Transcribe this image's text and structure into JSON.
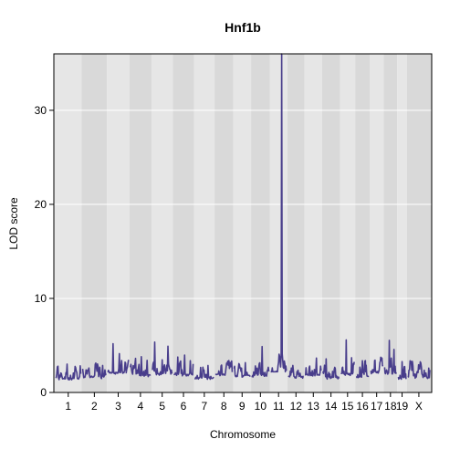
{
  "chart_data": {
    "type": "line",
    "title": "Hnf1b",
    "xlabel": "Chromosome",
    "ylabel": "LOD score",
    "ylim": [
      0,
      36
    ],
    "yticks": [
      0,
      10,
      20,
      30
    ],
    "grid": true,
    "colors": {
      "line": "#483D8B",
      "band_light": "#E6E6E6",
      "band_dark": "#D9D9D9",
      "grid": "#FFFFFF",
      "frame": "#000000"
    },
    "chromosomes": [
      {
        "label": "1",
        "len": 195,
        "baseline": 1.4,
        "peaks": [
          [
            0.08,
            3.4
          ],
          [
            0.45,
            3.0
          ],
          [
            0.78,
            3.1
          ]
        ]
      },
      {
        "label": "2",
        "len": 182,
        "baseline": 1.5,
        "peaks": [
          [
            0.15,
            2.4
          ],
          [
            0.55,
            4.0
          ],
          [
            0.85,
            2.8
          ]
        ]
      },
      {
        "label": "3",
        "len": 160,
        "baseline": 2.0,
        "peaks": [
          [
            0.25,
            5.2
          ],
          [
            0.55,
            4.5
          ],
          [
            0.85,
            3.5
          ]
        ]
      },
      {
        "label": "4",
        "len": 157,
        "baseline": 1.8,
        "peaks": [
          [
            0.15,
            3.0
          ],
          [
            0.55,
            4.2
          ],
          [
            0.82,
            3.8
          ]
        ]
      },
      {
        "label": "5",
        "len": 152,
        "baseline": 1.9,
        "peaks": [
          [
            0.12,
            5.5
          ],
          [
            0.5,
            3.6
          ],
          [
            0.8,
            5.2
          ]
        ]
      },
      {
        "label": "6",
        "len": 150,
        "baseline": 1.8,
        "peaks": [
          [
            0.2,
            4.1
          ],
          [
            0.55,
            4.6
          ],
          [
            0.85,
            3.3
          ]
        ]
      },
      {
        "label": "7",
        "len": 145,
        "baseline": 1.5,
        "peaks": [
          [
            0.3,
            2.7
          ],
          [
            0.7,
            3.0
          ]
        ]
      },
      {
        "label": "8",
        "len": 130,
        "baseline": 1.8,
        "peaks": [
          [
            0.35,
            4.8
          ],
          [
            0.8,
            3.4
          ]
        ]
      },
      {
        "label": "9",
        "len": 125,
        "baseline": 1.7,
        "peaks": [
          [
            0.3,
            2.9
          ],
          [
            0.7,
            3.2
          ]
        ]
      },
      {
        "label": "10",
        "len": 131,
        "baseline": 1.7,
        "peaks": [
          [
            0.2,
            2.8
          ],
          [
            0.6,
            5.0
          ]
        ]
      },
      {
        "label": "11",
        "len": 122,
        "baseline": 2.2,
        "peaks": [
          [
            0.7,
            35.5
          ]
        ]
      },
      {
        "label": "12",
        "len": 120,
        "baseline": 1.6,
        "peaks": [
          [
            0.3,
            3.0
          ],
          [
            0.75,
            2.5
          ]
        ]
      },
      {
        "label": "13",
        "len": 121,
        "baseline": 1.8,
        "peaks": [
          [
            0.25,
            4.4
          ],
          [
            0.7,
            3.6
          ]
        ]
      },
      {
        "label": "14",
        "len": 125,
        "baseline": 1.5,
        "peaks": [
          [
            0.2,
            3.5
          ],
          [
            0.6,
            2.3
          ]
        ]
      },
      {
        "label": "15",
        "len": 104,
        "baseline": 1.9,
        "peaks": [
          [
            0.4,
            5.6
          ],
          [
            0.8,
            3.6
          ]
        ]
      },
      {
        "label": "16",
        "len": 98,
        "baseline": 1.6,
        "peaks": [
          [
            0.3,
            2.6
          ],
          [
            0.7,
            2.9
          ]
        ]
      },
      {
        "label": "17",
        "len": 95,
        "baseline": 2.1,
        "peaks": [
          [
            0.35,
            5.6
          ],
          [
            0.75,
            3.3
          ]
        ]
      },
      {
        "label": "18",
        "len": 91,
        "baseline": 2.0,
        "peaks": [
          [
            0.4,
            5.5
          ],
          [
            0.8,
            4.5
          ]
        ]
      },
      {
        "label": "19",
        "len": 61,
        "baseline": 1.5,
        "peaks": [
          [
            0.5,
            3.3
          ]
        ]
      },
      {
        "label": "X",
        "len": 171,
        "baseline": 1.5,
        "peaks": [
          [
            0.3,
            2.2
          ],
          [
            0.75,
            2.5
          ],
          [
            0.95,
            2.6
          ]
        ]
      }
    ]
  }
}
